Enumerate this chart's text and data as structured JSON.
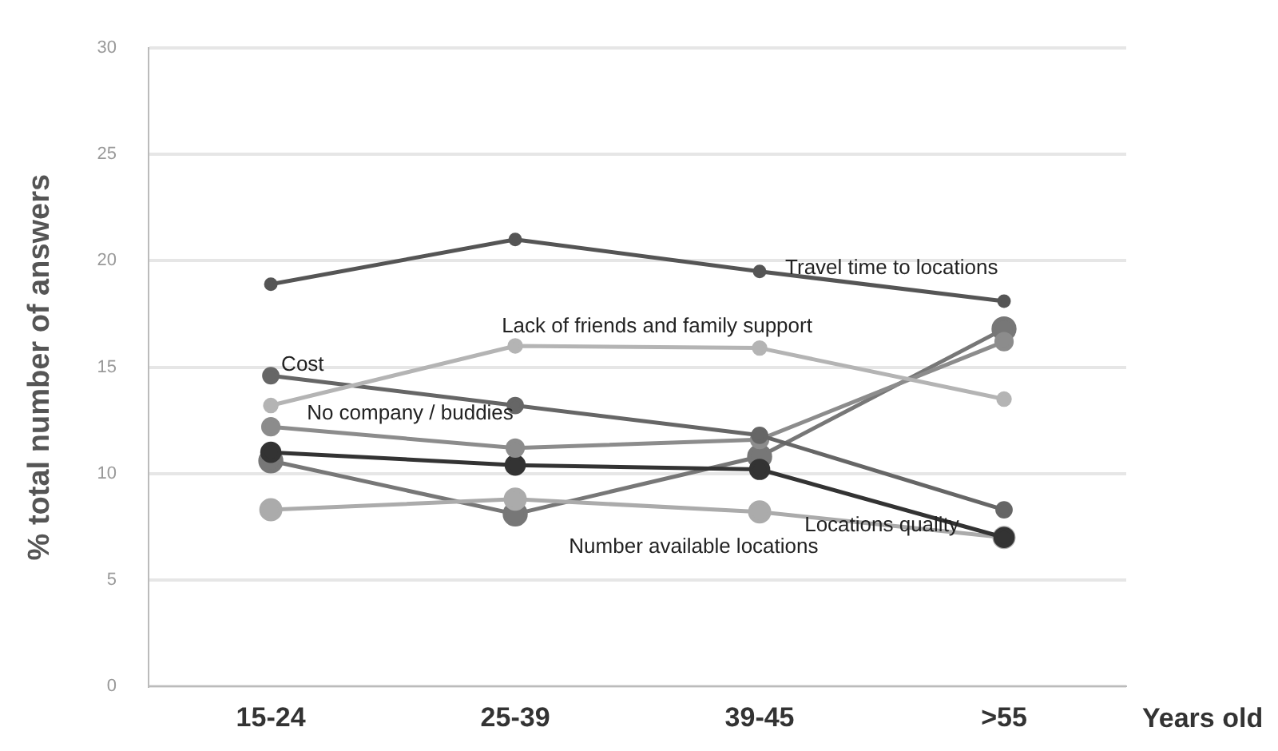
{
  "chart_data": {
    "type": "line",
    "ylabel": "% total number of answers",
    "xlabel": "Years old",
    "categories": [
      "15-24",
      "25-39",
      "39-45",
      ">55"
    ],
    "ylim": [
      0,
      30
    ],
    "yticks": [
      0,
      5,
      10,
      15,
      20,
      25,
      30
    ],
    "grid": "y",
    "legend": false,
    "marker": "circle",
    "line_style": "solid",
    "series": [
      {
        "name": "Travel time to locations",
        "color": "#555555",
        "values": [
          18.9,
          21.0,
          19.5,
          18.1
        ]
      },
      {
        "name": "Lack of friends and family support",
        "color": "#b4b4b4",
        "values": [
          13.2,
          16.0,
          15.9,
          13.5
        ]
      },
      {
        "name": "Cost",
        "color": "#666666",
        "values": [
          14.6,
          13.2,
          11.8,
          8.3
        ]
      },
      {
        "name": "No company / buddies",
        "color": "#8c8c8c",
        "values": [
          12.2,
          11.2,
          11.6,
          16.2
        ]
      },
      {
        "name": "Locations quality",
        "color": "#333333",
        "values": [
          11.0,
          10.4,
          10.2,
          7.0
        ]
      },
      {
        "name": "Number available locations",
        "color": "#ababab",
        "values": [
          8.3,
          8.8,
          8.2,
          7.0
        ]
      },
      {
        "color": "#777777",
        "values": [
          10.6,
          8.1,
          10.8,
          16.8
        ]
      }
    ]
  }
}
